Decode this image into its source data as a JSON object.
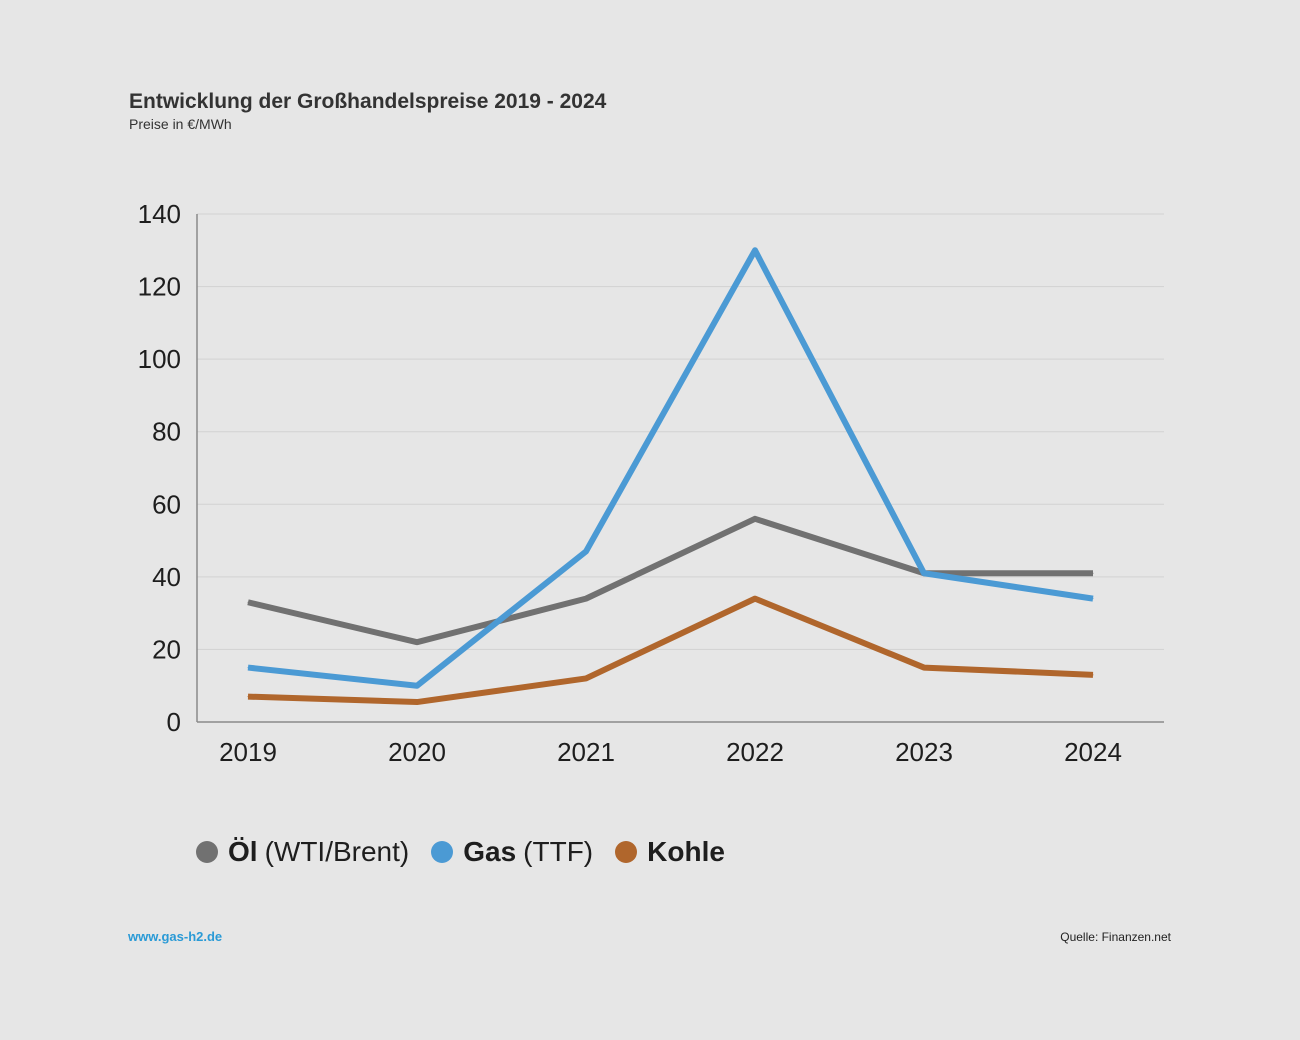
{
  "chart_data": {
    "type": "line",
    "title": "Entwicklung der Großhandelspreise 2019 - 2024",
    "subtitle": "Preise in €/MWh",
    "categories": [
      "2019",
      "2020",
      "2021",
      "2022",
      "2023",
      "2024"
    ],
    "ylim": [
      0,
      140
    ],
    "yticks": [
      0,
      20,
      40,
      60,
      80,
      100,
      120,
      140
    ],
    "grid": true,
    "legend_position": "bottom-left",
    "series": [
      {
        "name": "Öl",
        "qualifier": "(WTI/Brent)",
        "color": "#717171",
        "values": [
          33,
          22,
          34,
          56,
          41,
          41
        ]
      },
      {
        "name": "Gas",
        "qualifier": "(TTF)",
        "color": "#4b9ad4",
        "values": [
          15,
          10,
          47,
          130,
          41,
          34
        ]
      },
      {
        "name": "Kohle",
        "qualifier": "",
        "color": "#b0662c",
        "values": [
          7,
          5.5,
          12,
          34,
          15,
          13
        ]
      }
    ]
  },
  "footer": {
    "website": "www.gas-h2.de",
    "source": "Quelle: Finanzen.net"
  }
}
